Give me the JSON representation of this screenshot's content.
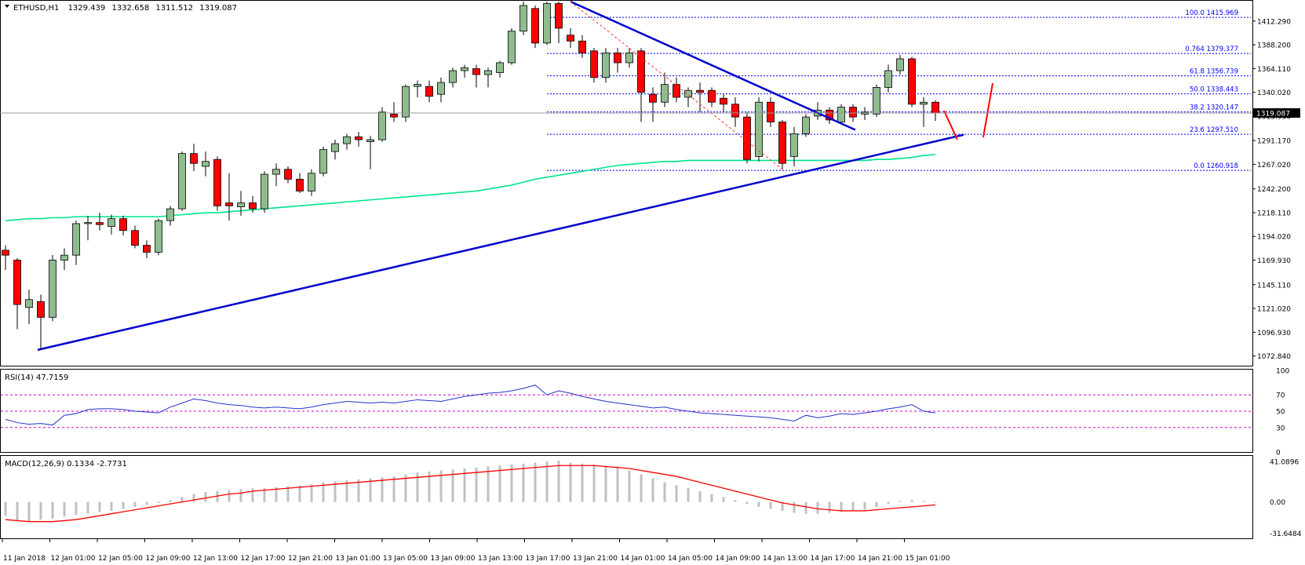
{
  "chart_data": {
    "type": "candlestick",
    "main": {
      "header": {
        "symbol": "ETHUSD,H1",
        "open": "1329.439",
        "high": "1332.658",
        "low": "1311.512",
        "close": "1319.087"
      },
      "ylim": [
        1063,
        1432
      ],
      "price_ticks": [
        "1412.290",
        "1388.200",
        "1364.110",
        "1340.020",
        "1315.930",
        "1291.170",
        "1267.020",
        "1242.200",
        "1218.110",
        "1194.020",
        "1169.930",
        "1145.110",
        "1121.020",
        "1096.930",
        "1072.840"
      ],
      "current_price": "1319.087",
      "fib_levels": [
        {
          "label": "100.0 1415.969",
          "value": 1415.969
        },
        {
          "label": "0.764 1379.377",
          "value": 1379.377
        },
        {
          "label": "61.8 1356.739",
          "value": 1356.739
        },
        {
          "label": "50.0 1338.443",
          "value": 1338.443
        },
        {
          "label": "38.2 1320.147",
          "value": 1320.147
        },
        {
          "label": "23.6 1297.510",
          "value": 1297.51
        },
        {
          "label": "0.0 1260.918",
          "value": 1260.918
        }
      ],
      "candles": [
        {
          "o": 1180,
          "h": 1185,
          "l": 1160,
          "c": 1175
        },
        {
          "o": 1170,
          "h": 1172,
          "l": 1100,
          "c": 1125
        },
        {
          "o": 1122,
          "h": 1140,
          "l": 1105,
          "c": 1130
        },
        {
          "o": 1128,
          "h": 1135,
          "l": 1080,
          "c": 1112
        },
        {
          "o": 1112,
          "h": 1175,
          "l": 1108,
          "c": 1170
        },
        {
          "o": 1170,
          "h": 1182,
          "l": 1160,
          "c": 1175
        },
        {
          "o": 1175,
          "h": 1210,
          "l": 1165,
          "c": 1207
        },
        {
          "o": 1207,
          "h": 1215,
          "l": 1190,
          "c": 1208
        },
        {
          "o": 1208,
          "h": 1218,
          "l": 1200,
          "c": 1206
        },
        {
          "o": 1204,
          "h": 1216,
          "l": 1196,
          "c": 1212
        },
        {
          "o": 1212,
          "h": 1215,
          "l": 1195,
          "c": 1200
        },
        {
          "o": 1200,
          "h": 1205,
          "l": 1182,
          "c": 1185
        },
        {
          "o": 1185,
          "h": 1190,
          "l": 1172,
          "c": 1178
        },
        {
          "o": 1178,
          "h": 1212,
          "l": 1175,
          "c": 1210
        },
        {
          "o": 1210,
          "h": 1225,
          "l": 1205,
          "c": 1222
        },
        {
          "o": 1222,
          "h": 1280,
          "l": 1220,
          "c": 1278
        },
        {
          "o": 1278,
          "h": 1288,
          "l": 1260,
          "c": 1268
        },
        {
          "o": 1265,
          "h": 1280,
          "l": 1255,
          "c": 1270
        },
        {
          "o": 1272,
          "h": 1275,
          "l": 1220,
          "c": 1225
        },
        {
          "o": 1228,
          "h": 1258,
          "l": 1210,
          "c": 1225
        },
        {
          "o": 1224,
          "h": 1240,
          "l": 1215,
          "c": 1228
        },
        {
          "o": 1228,
          "h": 1235,
          "l": 1218,
          "c": 1222
        },
        {
          "o": 1222,
          "h": 1260,
          "l": 1218,
          "c": 1257
        },
        {
          "o": 1257,
          "h": 1268,
          "l": 1245,
          "c": 1262
        },
        {
          "o": 1262,
          "h": 1265,
          "l": 1248,
          "c": 1252
        },
        {
          "o": 1252,
          "h": 1258,
          "l": 1238,
          "c": 1240
        },
        {
          "o": 1240,
          "h": 1262,
          "l": 1235,
          "c": 1258
        },
        {
          "o": 1258,
          "h": 1285,
          "l": 1255,
          "c": 1282
        },
        {
          "o": 1280,
          "h": 1292,
          "l": 1272,
          "c": 1288
        },
        {
          "o": 1288,
          "h": 1298,
          "l": 1282,
          "c": 1295
        },
        {
          "o": 1295,
          "h": 1300,
          "l": 1285,
          "c": 1292
        },
        {
          "o": 1290,
          "h": 1296,
          "l": 1262,
          "c": 1292
        },
        {
          "o": 1292,
          "h": 1325,
          "l": 1290,
          "c": 1320
        },
        {
          "o": 1318,
          "h": 1330,
          "l": 1310,
          "c": 1315
        },
        {
          "o": 1315,
          "h": 1348,
          "l": 1310,
          "c": 1346
        },
        {
          "o": 1346,
          "h": 1352,
          "l": 1335,
          "c": 1348
        },
        {
          "o": 1346,
          "h": 1352,
          "l": 1330,
          "c": 1336
        },
        {
          "o": 1338,
          "h": 1355,
          "l": 1330,
          "c": 1350
        },
        {
          "o": 1350,
          "h": 1365,
          "l": 1345,
          "c": 1362
        },
        {
          "o": 1362,
          "h": 1368,
          "l": 1355,
          "c": 1365
        },
        {
          "o": 1364,
          "h": 1368,
          "l": 1345,
          "c": 1358
        },
        {
          "o": 1358,
          "h": 1365,
          "l": 1345,
          "c": 1362
        },
        {
          "o": 1360,
          "h": 1372,
          "l": 1355,
          "c": 1370
        },
        {
          "o": 1370,
          "h": 1405,
          "l": 1368,
          "c": 1402
        },
        {
          "o": 1402,
          "h": 1432,
          "l": 1398,
          "c": 1428
        },
        {
          "o": 1425,
          "h": 1428,
          "l": 1385,
          "c": 1390
        },
        {
          "o": 1390,
          "h": 1432,
          "l": 1388,
          "c": 1430
        },
        {
          "o": 1430,
          "h": 1432,
          "l": 1390,
          "c": 1405
        },
        {
          "o": 1398,
          "h": 1405,
          "l": 1385,
          "c": 1392
        },
        {
          "o": 1392,
          "h": 1398,
          "l": 1375,
          "c": 1380
        },
        {
          "o": 1382,
          "h": 1385,
          "l": 1350,
          "c": 1355
        },
        {
          "o": 1355,
          "h": 1385,
          "l": 1350,
          "c": 1380
        },
        {
          "o": 1380,
          "h": 1385,
          "l": 1360,
          "c": 1370
        },
        {
          "o": 1370,
          "h": 1385,
          "l": 1365,
          "c": 1380
        },
        {
          "o": 1382,
          "h": 1385,
          "l": 1310,
          "c": 1340
        },
        {
          "o": 1338,
          "h": 1345,
          "l": 1310,
          "c": 1330
        },
        {
          "o": 1330,
          "h": 1360,
          "l": 1325,
          "c": 1348
        },
        {
          "o": 1348,
          "h": 1355,
          "l": 1330,
          "c": 1335
        },
        {
          "o": 1335,
          "h": 1345,
          "l": 1325,
          "c": 1342
        },
        {
          "o": 1342,
          "h": 1350,
          "l": 1320,
          "c": 1340
        },
        {
          "o": 1342,
          "h": 1345,
          "l": 1325,
          "c": 1330
        },
        {
          "o": 1334,
          "h": 1338,
          "l": 1320,
          "c": 1328
        },
        {
          "o": 1328,
          "h": 1335,
          "l": 1305,
          "c": 1315
        },
        {
          "o": 1315,
          "h": 1320,
          "l": 1268,
          "c": 1272
        },
        {
          "o": 1275,
          "h": 1335,
          "l": 1270,
          "c": 1330
        },
        {
          "o": 1330,
          "h": 1335,
          "l": 1305,
          "c": 1310
        },
        {
          "o": 1310,
          "h": 1312,
          "l": 1262,
          "c": 1268
        },
        {
          "o": 1275,
          "h": 1305,
          "l": 1265,
          "c": 1298
        },
        {
          "o": 1298,
          "h": 1318,
          "l": 1295,
          "c": 1315
        },
        {
          "o": 1316,
          "h": 1330,
          "l": 1312,
          "c": 1322
        },
        {
          "o": 1322,
          "h": 1325,
          "l": 1308,
          "c": 1312
        },
        {
          "o": 1310,
          "h": 1328,
          "l": 1308,
          "c": 1325
        },
        {
          "o": 1325,
          "h": 1328,
          "l": 1310,
          "c": 1315
        },
        {
          "o": 1318,
          "h": 1325,
          "l": 1312,
          "c": 1320
        },
        {
          "o": 1318,
          "h": 1348,
          "l": 1315,
          "c": 1345
        },
        {
          "o": 1345,
          "h": 1368,
          "l": 1340,
          "c": 1362
        },
        {
          "o": 1362,
          "h": 1378,
          "l": 1358,
          "c": 1374
        },
        {
          "o": 1374,
          "h": 1376,
          "l": 1325,
          "c": 1328
        },
        {
          "o": 1328,
          "h": 1335,
          "l": 1305,
          "c": 1330
        },
        {
          "o": 1330,
          "h": 1332,
          "l": 1311,
          "c": 1319
        }
      ],
      "ma_line": [
        1210,
        1211,
        1212,
        1212,
        1213,
        1213,
        1214,
        1214,
        1214,
        1214,
        1214,
        1214,
        1214,
        1214,
        1215,
        1216,
        1217,
        1218,
        1218,
        1219,
        1220,
        1221,
        1222,
        1223,
        1224,
        1225,
        1226,
        1227,
        1228,
        1229,
        1230,
        1231,
        1232,
        1233,
        1234,
        1235,
        1236,
        1237,
        1238,
        1239,
        1240,
        1242,
        1244,
        1246,
        1249,
        1252,
        1254,
        1256,
        1258,
        1260,
        1262,
        1264,
        1266,
        1267,
        1268,
        1269,
        1270,
        1270,
        1271,
        1271,
        1271,
        1271,
        1271,
        1271,
        1271,
        1271,
        1271,
        1271,
        1271,
        1271,
        1271,
        1271,
        1271,
        1271,
        1272,
        1272,
        1273,
        1274,
        1276,
        1277
      ]
    },
    "rsi": {
      "label": "RSI(14) 47.7159",
      "ylim": [
        0,
        100
      ],
      "ticks": [
        "100",
        "70",
        "50",
        "30",
        "0"
      ],
      "levels": [
        70,
        50,
        30
      ],
      "values": [
        40,
        36,
        34,
        35,
        33,
        45,
        47,
        52,
        53,
        53,
        52,
        50,
        49,
        48,
        55,
        60,
        65,
        63,
        60,
        58,
        57,
        55,
        54,
        55,
        54,
        53,
        55,
        58,
        60,
        62,
        61,
        60,
        61,
        60,
        62,
        64,
        63,
        62,
        65,
        68,
        70,
        72,
        73,
        75,
        78,
        82,
        70,
        75,
        72,
        68,
        65,
        62,
        60,
        58,
        56,
        54,
        55,
        52,
        50,
        48,
        47,
        46,
        45,
        44,
        43,
        42,
        40,
        38,
        45,
        42,
        44,
        47,
        46,
        48,
        50,
        53,
        55,
        58,
        50,
        48
      ]
    },
    "macd": {
      "label": "MACD(12,26,9) 0.1334 -2.7731",
      "ylim": [
        -37,
        46
      ],
      "ticks": [
        "41.0896",
        "0.00",
        "-31.6484"
      ],
      "hist": [
        -14,
        -19,
        -20,
        -18,
        -17,
        -15,
        -13,
        -12,
        -10,
        -9,
        -7,
        -5,
        -3,
        -1,
        2,
        5,
        8,
        10,
        11,
        12,
        13,
        14,
        14,
        15,
        16,
        17,
        18,
        20,
        21,
        22,
        23,
        24,
        25,
        26,
        28,
        30,
        31,
        32,
        33,
        34,
        35,
        36,
        37,
        38,
        39,
        40,
        41,
        42,
        40,
        39,
        38,
        37,
        36,
        32,
        28,
        24,
        20,
        17,
        14,
        11,
        8,
        5,
        2,
        -2,
        -5,
        -7,
        -9,
        -11,
        -12,
        -12,
        -11,
        -10,
        -9,
        -8,
        -5,
        -2,
        1,
        2,
        1,
        0
      ],
      "signal": [
        -18,
        -19,
        -20,
        -20,
        -20,
        -19,
        -18,
        -16,
        -14,
        -12,
        -10,
        -8,
        -6,
        -4,
        -2,
        0,
        2,
        4,
        6,
        8,
        9,
        11,
        12,
        13,
        14,
        15,
        16,
        17,
        18,
        19,
        20,
        21,
        22,
        23,
        24,
        25,
        26,
        27,
        28,
        29,
        30,
        31,
        32,
        33,
        34,
        35,
        36,
        37,
        37,
        37,
        37,
        36,
        35,
        34,
        32,
        30,
        28,
        26,
        23,
        20,
        17,
        14,
        11,
        8,
        5,
        2,
        -1,
        -3,
        -5,
        -7,
        -8,
        -9,
        -9,
        -9,
        -8,
        -7,
        -6,
        -5,
        -4,
        -3
      ]
    },
    "time_ticks": [
      "11 Jan 2018",
      "12 Jan 01:00",
      "12 Jan 05:00",
      "12 Jan 09:00",
      "12 Jan 13:00",
      "12 Jan 17:00",
      "12 Jan 21:00",
      "13 Jan 01:00",
      "13 Jan 05:00",
      "13 Jan 09:00",
      "13 Jan 13:00",
      "13 Jan 17:00",
      "13 Jan 21:00",
      "14 Jan 01:00",
      "14 Jan 05:00",
      "14 Jan 09:00",
      "14 Jan 13:00",
      "14 Jan 17:00",
      "14 Jan 21:00",
      "15 Jan 01:00"
    ],
    "colors": {
      "bull": "#8fbc8f",
      "bear": "#ff0000",
      "wick": "#000000",
      "ma": "#00e68a",
      "trendline": "#0000cc",
      "fib": "#0000ff",
      "rsi_line": "#2233cc",
      "level_line": "#cc00cc",
      "macd_hist": "#c0c0c0",
      "macd_signal": "#ff0000",
      "arrow": "#ff0000"
    }
  }
}
